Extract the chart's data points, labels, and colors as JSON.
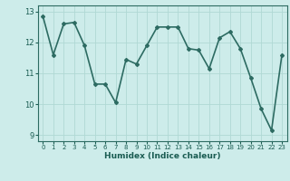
{
  "x": [
    0,
    1,
    2,
    3,
    4,
    5,
    6,
    7,
    8,
    9,
    10,
    11,
    12,
    13,
    14,
    15,
    16,
    17,
    18,
    19,
    20,
    21,
    22,
    23
  ],
  "y": [
    12.85,
    11.6,
    12.6,
    12.65,
    11.9,
    10.65,
    10.65,
    10.05,
    11.45,
    11.3,
    11.9,
    12.5,
    12.5,
    12.5,
    11.8,
    11.75,
    11.15,
    12.15,
    12.35,
    11.8,
    10.85,
    9.85,
    9.15,
    11.6
  ],
  "xlabel": "Humidex (Indice chaleur)",
  "ylim": [
    8.8,
    13.2
  ],
  "xlim": [
    -0.5,
    23.5
  ],
  "yticks": [
    9,
    10,
    11,
    12,
    13
  ],
  "xticks": [
    0,
    1,
    2,
    3,
    4,
    5,
    6,
    7,
    8,
    9,
    10,
    11,
    12,
    13,
    14,
    15,
    16,
    17,
    18,
    19,
    20,
    21,
    22,
    23
  ],
  "line_color": "#2d6b62",
  "bg_color": "#cdecea",
  "grid_color": "#b0d8d4",
  "tick_label_color": "#1a5c52",
  "xlabel_color": "#1a5c52",
  "marker": "D",
  "marker_size": 2,
  "line_width": 1.2
}
